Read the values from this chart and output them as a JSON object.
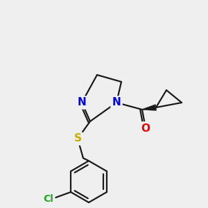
{
  "background_color": "#efefef",
  "bond_color": "#1a1a1a",
  "bond_width": 1.6,
  "atom_colors": {
    "N": "#0000ee",
    "O": "#ee0000",
    "S": "#ccaa00",
    "Cl": "#22aa22",
    "C": "#1a1a1a"
  },
  "figsize": [
    3.0,
    3.0
  ],
  "dpi": 100
}
